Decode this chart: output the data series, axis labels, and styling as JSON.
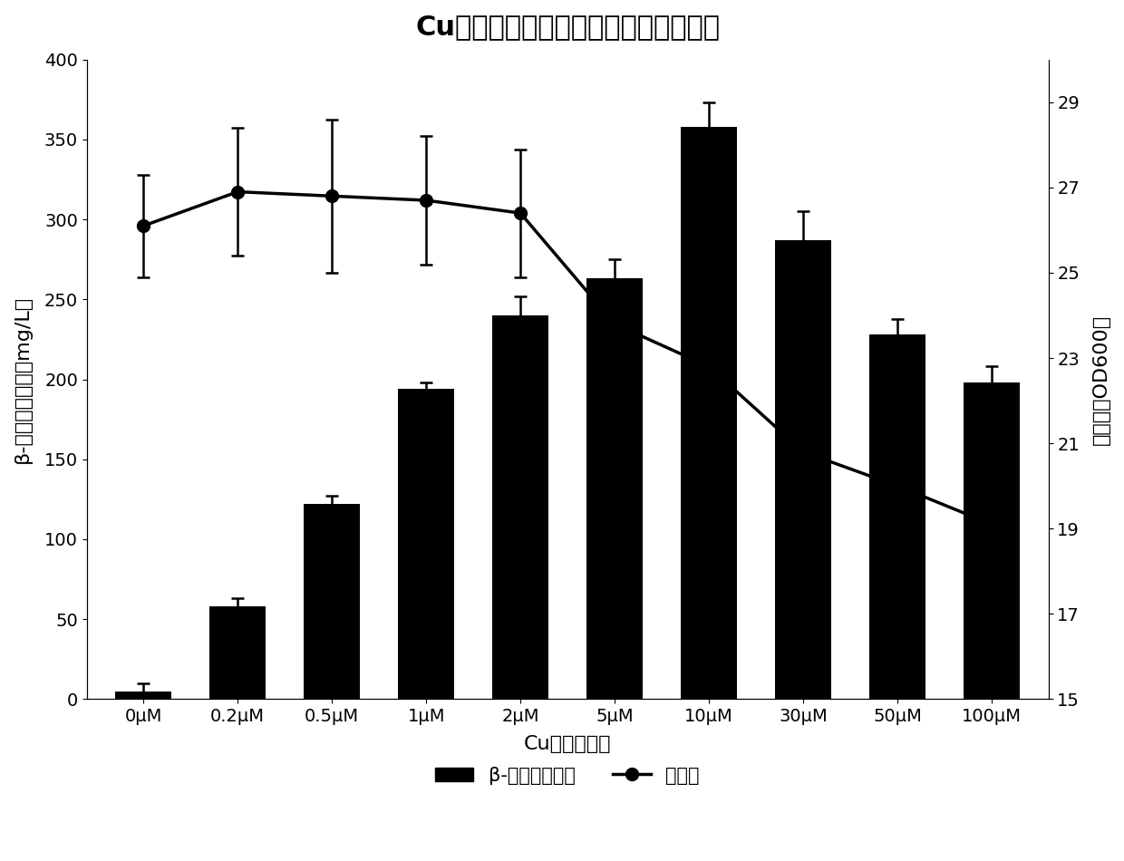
{
  "title": "Cu离子浓度对菌产色素及生物量的影响",
  "categories": [
    "0μM",
    "0.2μM",
    "0.5μM",
    "1μM",
    "2μM",
    "5μM",
    "10μM",
    "30μM",
    "50μM",
    "100μM"
  ],
  "bar_values": [
    5,
    58,
    122,
    194,
    240,
    263,
    358,
    287,
    228,
    198
  ],
  "bar_errors": [
    5,
    5,
    5,
    4,
    12,
    12,
    15,
    18,
    10,
    10
  ],
  "line_values": [
    26.1,
    26.9,
    26.8,
    26.7,
    26.4,
    23.8,
    22.8,
    20.8,
    20.0,
    19.1
  ],
  "line_errors": [
    1.2,
    1.5,
    1.8,
    1.5,
    1.5,
    0.5,
    0.5,
    0.3,
    0.3,
    0.5
  ],
  "xlabel": "Cu离子终浓度",
  "ylabel_left": "β-胡萝卜素产量（mg/L）",
  "ylabel_right": "生物量（OD600）",
  "ylim_left": [
    0,
    400
  ],
  "ylim_right": [
    15,
    30
  ],
  "yticks_left": [
    0,
    50,
    100,
    150,
    200,
    250,
    300,
    350,
    400
  ],
  "yticks_right": [
    15,
    17,
    19,
    21,
    23,
    25,
    27,
    29
  ],
  "legend_bar": "β-胡萝卜素产量",
  "legend_line": "生物量",
  "bar_color": "#000000",
  "line_color": "#000000",
  "background_color": "#ffffff",
  "title_fontsize": 22,
  "label_fontsize": 16,
  "tick_fontsize": 14,
  "legend_fontsize": 15
}
